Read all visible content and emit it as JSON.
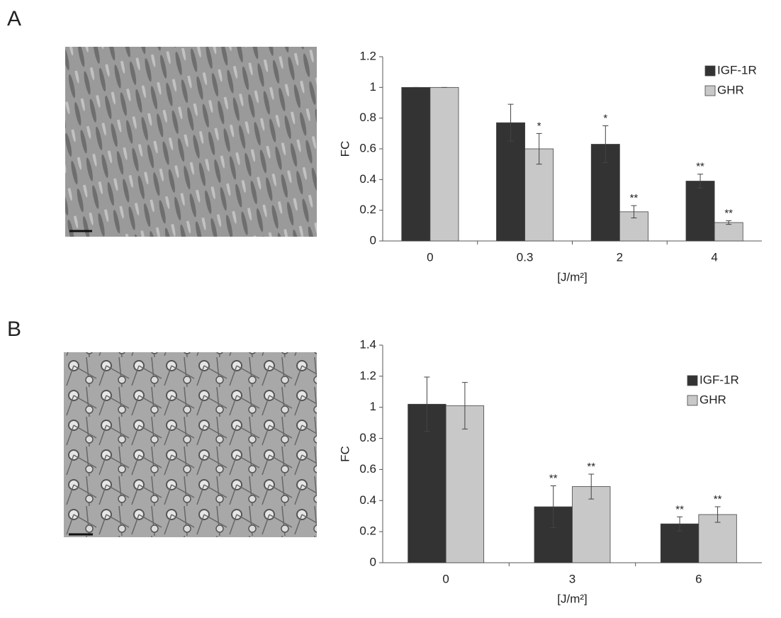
{
  "chart_data": [
    {
      "type": "bar",
      "label": "A",
      "y_label": "FC",
      "x_label": "[J/m²]",
      "categories": [
        "0",
        "0.3",
        "2",
        "4"
      ],
      "series": [
        {
          "name": "IGF-1R",
          "color": "#333333",
          "values": [
            1,
            0.77,
            0.63,
            0.39
          ],
          "errors": [
            0,
            0.12,
            0.12,
            0.045
          ],
          "value_labels": [
            null,
            null,
            "*",
            "**"
          ]
        },
        {
          "name": "GHR",
          "color": "#c8c8c8",
          "values": [
            1,
            0.6,
            0.19,
            0.12
          ],
          "errors": [
            0,
            0.1,
            0.04,
            0.012
          ],
          "value_labels": [
            null,
            "*",
            "**",
            "**"
          ]
        }
      ],
      "ylim": [
        0,
        1.2
      ],
      "yticks": [
        0,
        0.2,
        0.4,
        0.6,
        0.8,
        1,
        1.2
      ],
      "legend": "top-right"
    },
    {
      "type": "bar",
      "label": "B",
      "y_label": "FC",
      "x_label": "[J/m²]",
      "categories": [
        "0",
        "3",
        "6"
      ],
      "series": [
        {
          "name": "IGF-1R",
          "color": "#333333",
          "values": [
            1.02,
            0.36,
            0.25
          ],
          "errors": [
            0.175,
            0.135,
            0.045
          ],
          "value_labels": [
            null,
            "**",
            "**"
          ]
        },
        {
          "name": "GHR",
          "color": "#c8c8c8",
          "values": [
            1.01,
            0.49,
            0.31
          ],
          "errors": [
            0.15,
            0.08,
            0.05
          ],
          "value_labels": [
            null,
            "**",
            "**"
          ]
        }
      ],
      "ylim": [
        0,
        1.4
      ],
      "yticks": [
        0,
        0.2,
        0.4,
        0.6,
        0.8,
        1,
        1.2,
        1.4
      ],
      "legend": "top-right"
    }
  ]
}
